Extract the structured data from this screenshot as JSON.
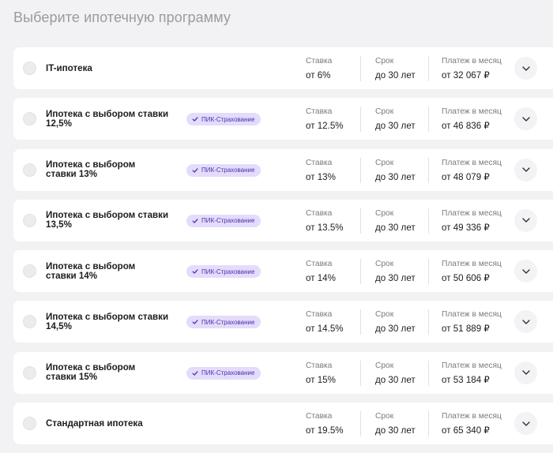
{
  "page": {
    "title": "Выберите ипотечную программу"
  },
  "labels": {
    "rate": "Ставка",
    "term": "Срок",
    "payment": "Платеж в месяц"
  },
  "badge_text": "ПИК-Страхование",
  "colors": {
    "badge_bg": "#e4dcfa",
    "badge_text": "#4a2fb3",
    "background": "#f2f2f4",
    "card": "#ffffff"
  },
  "icons": {
    "radio": "radio-unchecked-icon",
    "badge": "check-icon",
    "expand": "chevron-down-icon"
  },
  "programs": [
    {
      "name": "IT-ипотека",
      "badge": false,
      "rate": "от 6%",
      "term": "до 30 лет",
      "payment": "от 32 067 ₽"
    },
    {
      "name": "Ипотека с выбором ставки 12,5%",
      "badge": true,
      "rate": "от 12.5%",
      "term": "до 30 лет",
      "payment": "от 46 836 ₽"
    },
    {
      "name": "Ипотека с выбором ставки 13%",
      "badge": true,
      "rate": "от 13%",
      "term": "до 30 лет",
      "payment": "от 48 079 ₽"
    },
    {
      "name": "Ипотека с выбором ставки 13,5%",
      "badge": true,
      "rate": "от 13.5%",
      "term": "до 30 лет",
      "payment": "от 49 336 ₽"
    },
    {
      "name": "Ипотека с выбором ставки 14%",
      "badge": true,
      "rate": "от 14%",
      "term": "до 30 лет",
      "payment": "от 50 606 ₽"
    },
    {
      "name": "Ипотека с выбором ставки 14,5%",
      "badge": true,
      "rate": "от 14.5%",
      "term": "до 30 лет",
      "payment": "от 51 889 ₽"
    },
    {
      "name": "Ипотека с выбором ставки 15%",
      "badge": true,
      "rate": "от 15%",
      "term": "до 30 лет",
      "payment": "от 53 184 ₽"
    },
    {
      "name": "Стандартная ипотека",
      "badge": false,
      "rate": "от 19.5%",
      "term": "до 30 лет",
      "payment": "от 65 340 ₽"
    }
  ]
}
